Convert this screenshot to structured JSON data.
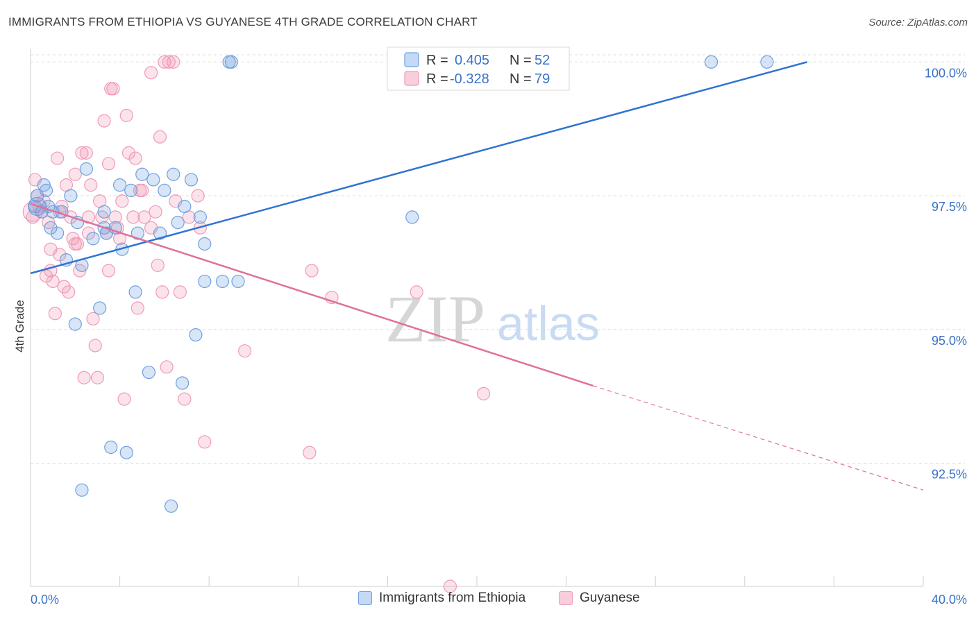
{
  "header": {
    "title": "IMMIGRANTS FROM ETHIOPIA VS GUYANESE 4TH GRADE CORRELATION CHART",
    "source": "Source: ZipAtlas.com"
  },
  "watermark": {
    "zip": "ZIP",
    "atlas": "atlas"
  },
  "legend": {
    "rows": [
      {
        "r_label": "R =",
        "r_value": "0.405",
        "n_label": "N =",
        "n_value": "52"
      },
      {
        "r_label": "R =",
        "r_value": "-0.328",
        "n_label": "N =",
        "n_value": "79"
      }
    ]
  },
  "bottom_legend": {
    "items": [
      "Immigrants from Ethiopia",
      "Guyanese"
    ]
  },
  "chart_data": {
    "type": "scatter",
    "title": "IMMIGRANTS FROM ETHIOPIA VS GUYANESE 4TH GRADE CORRELATION CHART",
    "ylabel": "4th Grade",
    "xlabel": "",
    "xlim": [
      0,
      40
    ],
    "ylim": [
      90.2,
      100.25
    ],
    "x_tick_labels": [
      "0.0%",
      "40.0%"
    ],
    "y_ticks": [
      100.0,
      97.5,
      95.0,
      92.5
    ],
    "y_tick_labels": [
      "100.0%",
      "97.5%",
      "95.0%",
      "92.5%"
    ],
    "grid": true,
    "colors": {
      "ethiopia": "#6fa0e0",
      "guyanese": "#f09ab7",
      "ethiopia_line": "#2f74d0",
      "guyanese_line": "#e0709a",
      "tick_text": "#3a72c8"
    },
    "series": [
      {
        "name": "Immigrants from Ethiopia",
        "color": "#6fa0e0",
        "trend": {
          "x": [
            0,
            34.8
          ],
          "y": [
            96.05,
            100.0
          ]
        },
        "points": [
          [
            0.2,
            97.3
          ],
          [
            0.3,
            97.5
          ],
          [
            0.5,
            97.2
          ],
          [
            0.6,
            97.7
          ],
          [
            0.7,
            97.6
          ],
          [
            0.8,
            97.3
          ],
          [
            0.9,
            96.9
          ],
          [
            1.2,
            96.8
          ],
          [
            1.4,
            97.2
          ],
          [
            1.6,
            96.3
          ],
          [
            1.8,
            97.5
          ],
          [
            2.0,
            95.1
          ],
          [
            2.1,
            97.0
          ],
          [
            2.3,
            96.2
          ],
          [
            2.5,
            98.0
          ],
          [
            2.8,
            96.7
          ],
          [
            3.1,
            95.4
          ],
          [
            3.3,
            97.2
          ],
          [
            3.4,
            96.8
          ],
          [
            3.6,
            92.8
          ],
          [
            3.8,
            96.9
          ],
          [
            4.0,
            97.7
          ],
          [
            4.1,
            96.5
          ],
          [
            4.3,
            92.7
          ],
          [
            4.5,
            97.6
          ],
          [
            4.7,
            95.7
          ],
          [
            4.8,
            96.8
          ],
          [
            5.0,
            97.9
          ],
          [
            5.3,
            94.2
          ],
          [
            5.5,
            97.8
          ],
          [
            5.8,
            96.8
          ],
          [
            6.0,
            97.6
          ],
          [
            6.3,
            91.7
          ],
          [
            6.4,
            97.9
          ],
          [
            6.6,
            97.0
          ],
          [
            6.8,
            94.0
          ],
          [
            6.9,
            97.3
          ],
          [
            7.2,
            97.8
          ],
          [
            7.4,
            94.9
          ],
          [
            7.6,
            97.1
          ],
          [
            7.8,
            96.6
          ],
          [
            7.8,
            95.9
          ],
          [
            8.9,
            100.0
          ],
          [
            9.0,
            100.0
          ],
          [
            8.6,
            95.9
          ],
          [
            9.3,
            95.9
          ],
          [
            17.1,
            97.1
          ],
          [
            30.5,
            100.0
          ],
          [
            33.0,
            100.0
          ],
          [
            2.3,
            92.0
          ],
          [
            1.0,
            97.2
          ],
          [
            3.3,
            96.9
          ]
        ]
      },
      {
        "name": "Guyanese",
        "color": "#f09ab7",
        "trend": {
          "x": [
            0,
            25.2
          ],
          "y": [
            97.35,
            93.95
          ],
          "dashed_x": [
            25.2,
            40
          ],
          "dashed_y": [
            93.95,
            92.0
          ]
        },
        "points": [
          [
            0.1,
            97.1
          ],
          [
            0.2,
            97.8
          ],
          [
            0.3,
            97.5
          ],
          [
            0.4,
            97.3
          ],
          [
            0.6,
            97.4
          ],
          [
            0.7,
            96.0
          ],
          [
            0.8,
            97.0
          ],
          [
            0.9,
            96.1
          ],
          [
            0.9,
            96.5
          ],
          [
            1.0,
            95.9
          ],
          [
            1.1,
            95.3
          ],
          [
            1.2,
            98.2
          ],
          [
            1.3,
            96.4
          ],
          [
            1.4,
            97.3
          ],
          [
            1.5,
            95.8
          ],
          [
            1.6,
            97.7
          ],
          [
            1.7,
            95.7
          ],
          [
            1.8,
            97.1
          ],
          [
            1.9,
            96.7
          ],
          [
            2.0,
            96.6
          ],
          [
            2.0,
            97.9
          ],
          [
            2.2,
            96.1
          ],
          [
            2.3,
            98.3
          ],
          [
            2.4,
            94.1
          ],
          [
            2.5,
            98.3
          ],
          [
            2.6,
            96.8
          ],
          [
            2.7,
            97.7
          ],
          [
            2.8,
            95.2
          ],
          [
            2.9,
            94.7
          ],
          [
            3.0,
            94.1
          ],
          [
            3.1,
            97.4
          ],
          [
            3.2,
            97.1
          ],
          [
            3.3,
            98.9
          ],
          [
            3.4,
            96.8
          ],
          [
            3.5,
            98.1
          ],
          [
            3.5,
            96.1
          ],
          [
            3.6,
            99.5
          ],
          [
            3.7,
            99.5
          ],
          [
            3.9,
            96.9
          ],
          [
            4.0,
            96.7
          ],
          [
            4.1,
            97.4
          ],
          [
            4.2,
            93.7
          ],
          [
            4.3,
            99.0
          ],
          [
            4.4,
            98.3
          ],
          [
            4.6,
            97.1
          ],
          [
            4.7,
            98.2
          ],
          [
            4.8,
            95.4
          ],
          [
            5.0,
            97.6
          ],
          [
            5.1,
            97.1
          ],
          [
            5.4,
            96.9
          ],
          [
            5.4,
            99.8
          ],
          [
            5.6,
            97.2
          ],
          [
            5.7,
            96.2
          ],
          [
            5.8,
            98.6
          ],
          [
            5.9,
            95.7
          ],
          [
            6.0,
            100.0
          ],
          [
            6.1,
            94.3
          ],
          [
            6.2,
            100.0
          ],
          [
            6.4,
            100.0
          ],
          [
            6.5,
            97.4
          ],
          [
            6.7,
            95.7
          ],
          [
            6.9,
            93.7
          ],
          [
            7.1,
            97.1
          ],
          [
            7.5,
            97.5
          ],
          [
            7.6,
            96.9
          ],
          [
            7.8,
            92.9
          ],
          [
            9.6,
            94.6
          ],
          [
            12.5,
            92.7
          ],
          [
            12.6,
            96.1
          ],
          [
            13.5,
            95.6
          ],
          [
            17.3,
            95.7
          ],
          [
            20.3,
            93.8
          ],
          [
            18.8,
            90.2
          ],
          [
            1.3,
            97.2
          ],
          [
            0.5,
            97.2
          ],
          [
            2.6,
            97.1
          ],
          [
            3.8,
            97.1
          ],
          [
            4.9,
            97.6
          ],
          [
            2.1,
            96.6
          ]
        ]
      }
    ]
  }
}
